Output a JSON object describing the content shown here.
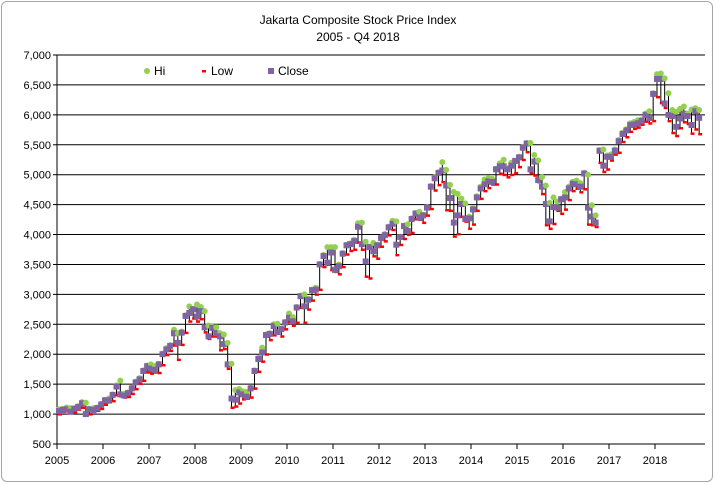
{
  "chart_data": {
    "type": "stock-hlc",
    "title": "Jakarta Composite Stock Price Index",
    "subtitle": "2005 - Q4 2018",
    "xlabel": "",
    "ylabel": "",
    "ylim": [
      500,
      7000
    ],
    "xlim": [
      2005,
      2019
    ],
    "grid": true,
    "legend_position": "top-left",
    "y_ticks": [
      "500",
      "1,000",
      "1,500",
      "2,000",
      "2,500",
      "3,000",
      "3,500",
      "4,000",
      "4,500",
      "5,000",
      "5,500",
      "6,000",
      "6,500",
      "7,000"
    ],
    "x_ticks": [
      "2005",
      "2006",
      "2007",
      "2008",
      "2009",
      "2010",
      "2011",
      "2012",
      "2013",
      "2014",
      "2015",
      "2016",
      "2017",
      "2018"
    ],
    "legend": [
      {
        "name": "Hi",
        "color": "#92d050",
        "marker": "circle"
      },
      {
        "name": "Low",
        "color": "#ff0000",
        "marker": "dash"
      },
      {
        "name": "Close",
        "color": "#8064a2",
        "marker": "square"
      }
    ],
    "start": "2005-01",
    "interval": "monthly",
    "close": [
      1050,
      1070,
      1080,
      1040,
      1090,
      1120,
      1180,
      1000,
      1080,
      1070,
      1100,
      1160,
      1230,
      1230,
      1320,
      1460,
      1330,
      1310,
      1350,
      1430,
      1530,
      1580,
      1720,
      1800,
      1760,
      1740,
      1830,
      2000,
      2080,
      2140,
      2350,
      2190,
      2360,
      2640,
      2690,
      2750,
      2630,
      2720,
      2450,
      2300,
      2440,
      2350,
      2300,
      2170,
      1830,
      1260,
      1240,
      1360,
      1330,
      1290,
      1430,
      1720,
      1920,
      2030,
      2320,
      2340,
      2470,
      2370,
      2420,
      2530,
      2610,
      2550,
      2780,
      2970,
      2800,
      2910,
      3070,
      3080,
      3500,
      3640,
      3530,
      3700,
      3410,
      3470,
      3680,
      3820,
      3840,
      3890,
      4130,
      3840,
      3550,
      3790,
      3720,
      3820,
      3940,
      3990,
      4120,
      4180,
      3830,
      3960,
      4140,
      4060,
      4260,
      4350,
      4280,
      4320,
      4450,
      4800,
      4940,
      5030,
      5070,
      4820,
      4610,
      4200,
      4320,
      4510,
      4260,
      4270,
      4420,
      4620,
      4770,
      4840,
      4890,
      4880,
      5090,
      5140,
      5140,
      5090,
      5150,
      5230,
      5290,
      5450,
      5520,
      5090,
      5220,
      4910,
      4800,
      4510,
      4220,
      4460,
      4450,
      4590,
      4620,
      4770,
      4850,
      4840,
      4800,
      5020,
      4450,
      4300,
      4200,
      5400,
      5150,
      5300,
      5300,
      5400,
      5560,
      5680,
      5740,
      5830,
      5840,
      5860,
      5900,
      6000,
      5950,
      6350,
      6600,
      6600,
      6190,
      6000,
      5980,
      5800,
      5940,
      6020,
      5980,
      5830,
      6060,
      5950
    ],
    "hi": [
      1080,
      1090,
      1110,
      1100,
      1100,
      1130,
      1200,
      1190,
      1090,
      1100,
      1110,
      1170,
      1240,
      1260,
      1330,
      1480,
      1560,
      1340,
      1360,
      1440,
      1540,
      1600,
      1730,
      1810,
      1830,
      1800,
      1840,
      2010,
      2100,
      2150,
      2410,
      2350,
      2380,
      2650,
      2800,
      2760,
      2830,
      2790,
      2720,
      2480,
      2460,
      2450,
      2350,
      2330,
      2190,
      1840,
      1400,
      1420,
      1380,
      1370,
      1440,
      1730,
      1940,
      2110,
      2330,
      2350,
      2500,
      2510,
      2430,
      2540,
      2680,
      2620,
      2790,
      2980,
      3000,
      2930,
      3080,
      3110,
      3510,
      3660,
      3790,
      3790,
      3790,
      3500,
      3690,
      3830,
      3850,
      3910,
      4190,
      4200,
      3880,
      3800,
      3860,
      3830,
      3950,
      4010,
      4130,
      4230,
      4220,
      3960,
      4150,
      4170,
      4270,
      4360,
      4380,
      4330,
      4460,
      4810,
      4960,
      5040,
      5210,
      5080,
      4830,
      4710,
      4680,
      4600,
      4520,
      4300,
      4440,
      4640,
      4800,
      4920,
      4940,
      4930,
      5100,
      5190,
      5250,
      5110,
      5200,
      5230,
      5300,
      5460,
      5530,
      5530,
      5330,
      5240,
      4960,
      4820,
      4530,
      4620,
      4550,
      4600,
      4710,
      4800,
      4880,
      4900,
      4860,
      5030,
      5000,
      4490,
      4320,
      5410,
      5420,
      5320,
      5340,
      5420,
      5580,
      5700,
      5760,
      5860,
      5880,
      5910,
      5920,
      6020,
      6060,
      6360,
      6680,
      6690,
      6610,
      6360,
      6080,
      6050,
      6100,
      6140,
      6020,
      6090,
      6110,
      6080
    ],
    "low": [
      1000,
      1040,
      1050,
      1020,
      1030,
      1080,
      1110,
      990,
      1000,
      1040,
      1060,
      1090,
      1160,
      1200,
      1220,
      1320,
      1300,
      1280,
      1290,
      1340,
      1420,
      1510,
      1560,
      1700,
      1680,
      1700,
      1690,
      1820,
      1990,
      2060,
      2150,
      1910,
      2160,
      2360,
      2550,
      2600,
      2550,
      2590,
      2370,
      2260,
      2300,
      2300,
      2070,
      2090,
      1760,
      1110,
      1130,
      1180,
      1250,
      1260,
      1280,
      1430,
      1710,
      1880,
      2000,
      2240,
      2320,
      2350,
      2300,
      2420,
      2540,
      2480,
      2530,
      2780,
      2530,
      2750,
      2900,
      3000,
      3080,
      3460,
      3500,
      3410,
      3380,
      3340,
      3460,
      3670,
      3730,
      3750,
      3870,
      3750,
      3300,
      3270,
      3640,
      3600,
      3800,
      3890,
      3990,
      4080,
      3660,
      3830,
      3930,
      4000,
      4030,
      4260,
      4250,
      4200,
      4320,
      4430,
      4740,
      4830,
      4880,
      4410,
      4400,
      3970,
      4010,
      4300,
      4220,
      4100,
      4170,
      4400,
      4600,
      4730,
      4780,
      4840,
      4840,
      5020,
      5000,
      4960,
      5000,
      5030,
      5130,
      5250,
      5380,
      5030,
      4990,
      4880,
      4680,
      4160,
      4100,
      4180,
      4400,
      4350,
      4420,
      4580,
      4730,
      4770,
      4710,
      4760,
      4170,
      4160,
      4130,
      5200,
      5050,
      5090,
      5240,
      5340,
      5370,
      5550,
      5630,
      5720,
      5770,
      5790,
      5840,
      5890,
      5860,
      5900,
      6300,
      6200,
      6120,
      5900,
      5700,
      5650,
      5780,
      5880,
      5850,
      5690,
      5760,
      5680
    ]
  }
}
